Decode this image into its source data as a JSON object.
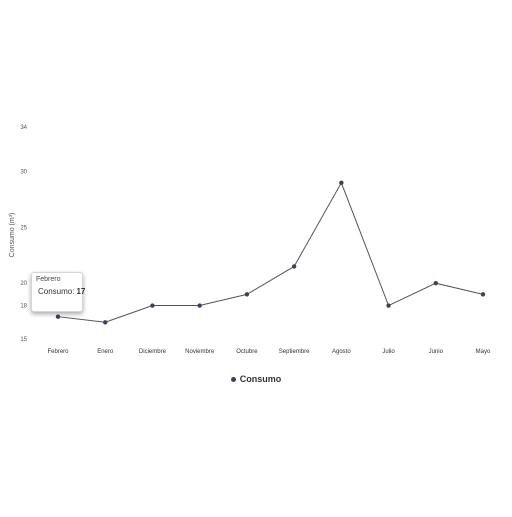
{
  "chart_data": {
    "type": "line",
    "categories": [
      "Febrero",
      "Enero",
      "Diciembre",
      "Noviembre",
      "Octubre",
      "Septiembre",
      "Agosto",
      "Julio",
      "Junio",
      "Mayo"
    ],
    "series": [
      {
        "name": "Consumo",
        "color": "#3a4356",
        "values": [
          17,
          16.5,
          18,
          18,
          19,
          21.5,
          29,
          18,
          20,
          19
        ]
      }
    ],
    "ylabel": "Consumo (m³)",
    "yticks": [
      15,
      18,
      20,
      25,
      30,
      34
    ],
    "ylim": [
      15,
      34
    ],
    "grid": false,
    "legend": "bottom"
  },
  "tooltip": {
    "title": "Febrero",
    "label": "Consumo:",
    "value": "17"
  },
  "legend": {
    "label": "Consumo"
  }
}
